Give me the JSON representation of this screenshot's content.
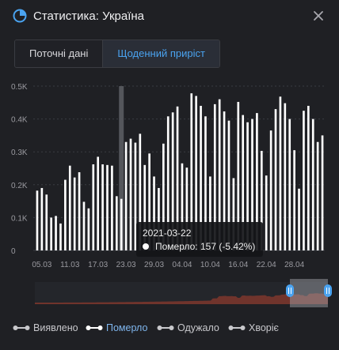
{
  "header": {
    "title": "Статистика: Україна",
    "icon": "pie-chart-icon",
    "close_icon": "close-icon"
  },
  "tabs": [
    {
      "label": "Поточні дані",
      "active": false
    },
    {
      "label": "Щоденний приріст",
      "active": true
    }
  ],
  "tooltip": {
    "date": "2021-03-22",
    "value": "Померло: 157 (-5.42%)"
  },
  "legend": [
    {
      "label": "Виявлено",
      "active": false
    },
    {
      "label": "Померло",
      "active": true
    },
    {
      "label": "Одужало",
      "active": false
    },
    {
      "label": "Хворіє",
      "active": false
    }
  ],
  "colors": {
    "background": "#1f2024",
    "bar": "#ffffff",
    "accent": "#4aa3f0",
    "grid": "#3a3c42",
    "brush_fill": "#8a3a2e"
  },
  "chart_data": {
    "type": "bar",
    "series": [
      {
        "name": "Померло"
      }
    ],
    "ylim": [
      0,
      500
    ],
    "y_ticks": [
      "0",
      "0.1K",
      "0.2K",
      "0.3K",
      "0.4K",
      "0.5K"
    ],
    "x_tick_labels": [
      "05.03",
      "11.03",
      "17.03",
      "23.03",
      "29.03",
      "04.04",
      "10.04",
      "16.04",
      "22.04",
      "28.04"
    ],
    "highlight_category": "2021-03-22",
    "values": [
      182,
      190,
      170,
      100,
      105,
      82,
      215,
      258,
      222,
      238,
      148,
      128,
      262,
      285,
      262,
      260,
      258,
      165,
      157,
      330,
      340,
      328,
      355,
      260,
      295,
      225,
      190,
      325,
      408,
      420,
      438,
      265,
      252,
      478,
      470,
      440,
      408,
      225,
      445,
      460,
      423,
      395,
      220,
      452,
      412,
      390,
      400,
      418,
      303,
      228,
      365,
      430,
      468,
      448,
      400,
      305,
      188,
      425,
      440,
      400,
      330,
      350
    ]
  },
  "brush": {
    "note": ""
  }
}
